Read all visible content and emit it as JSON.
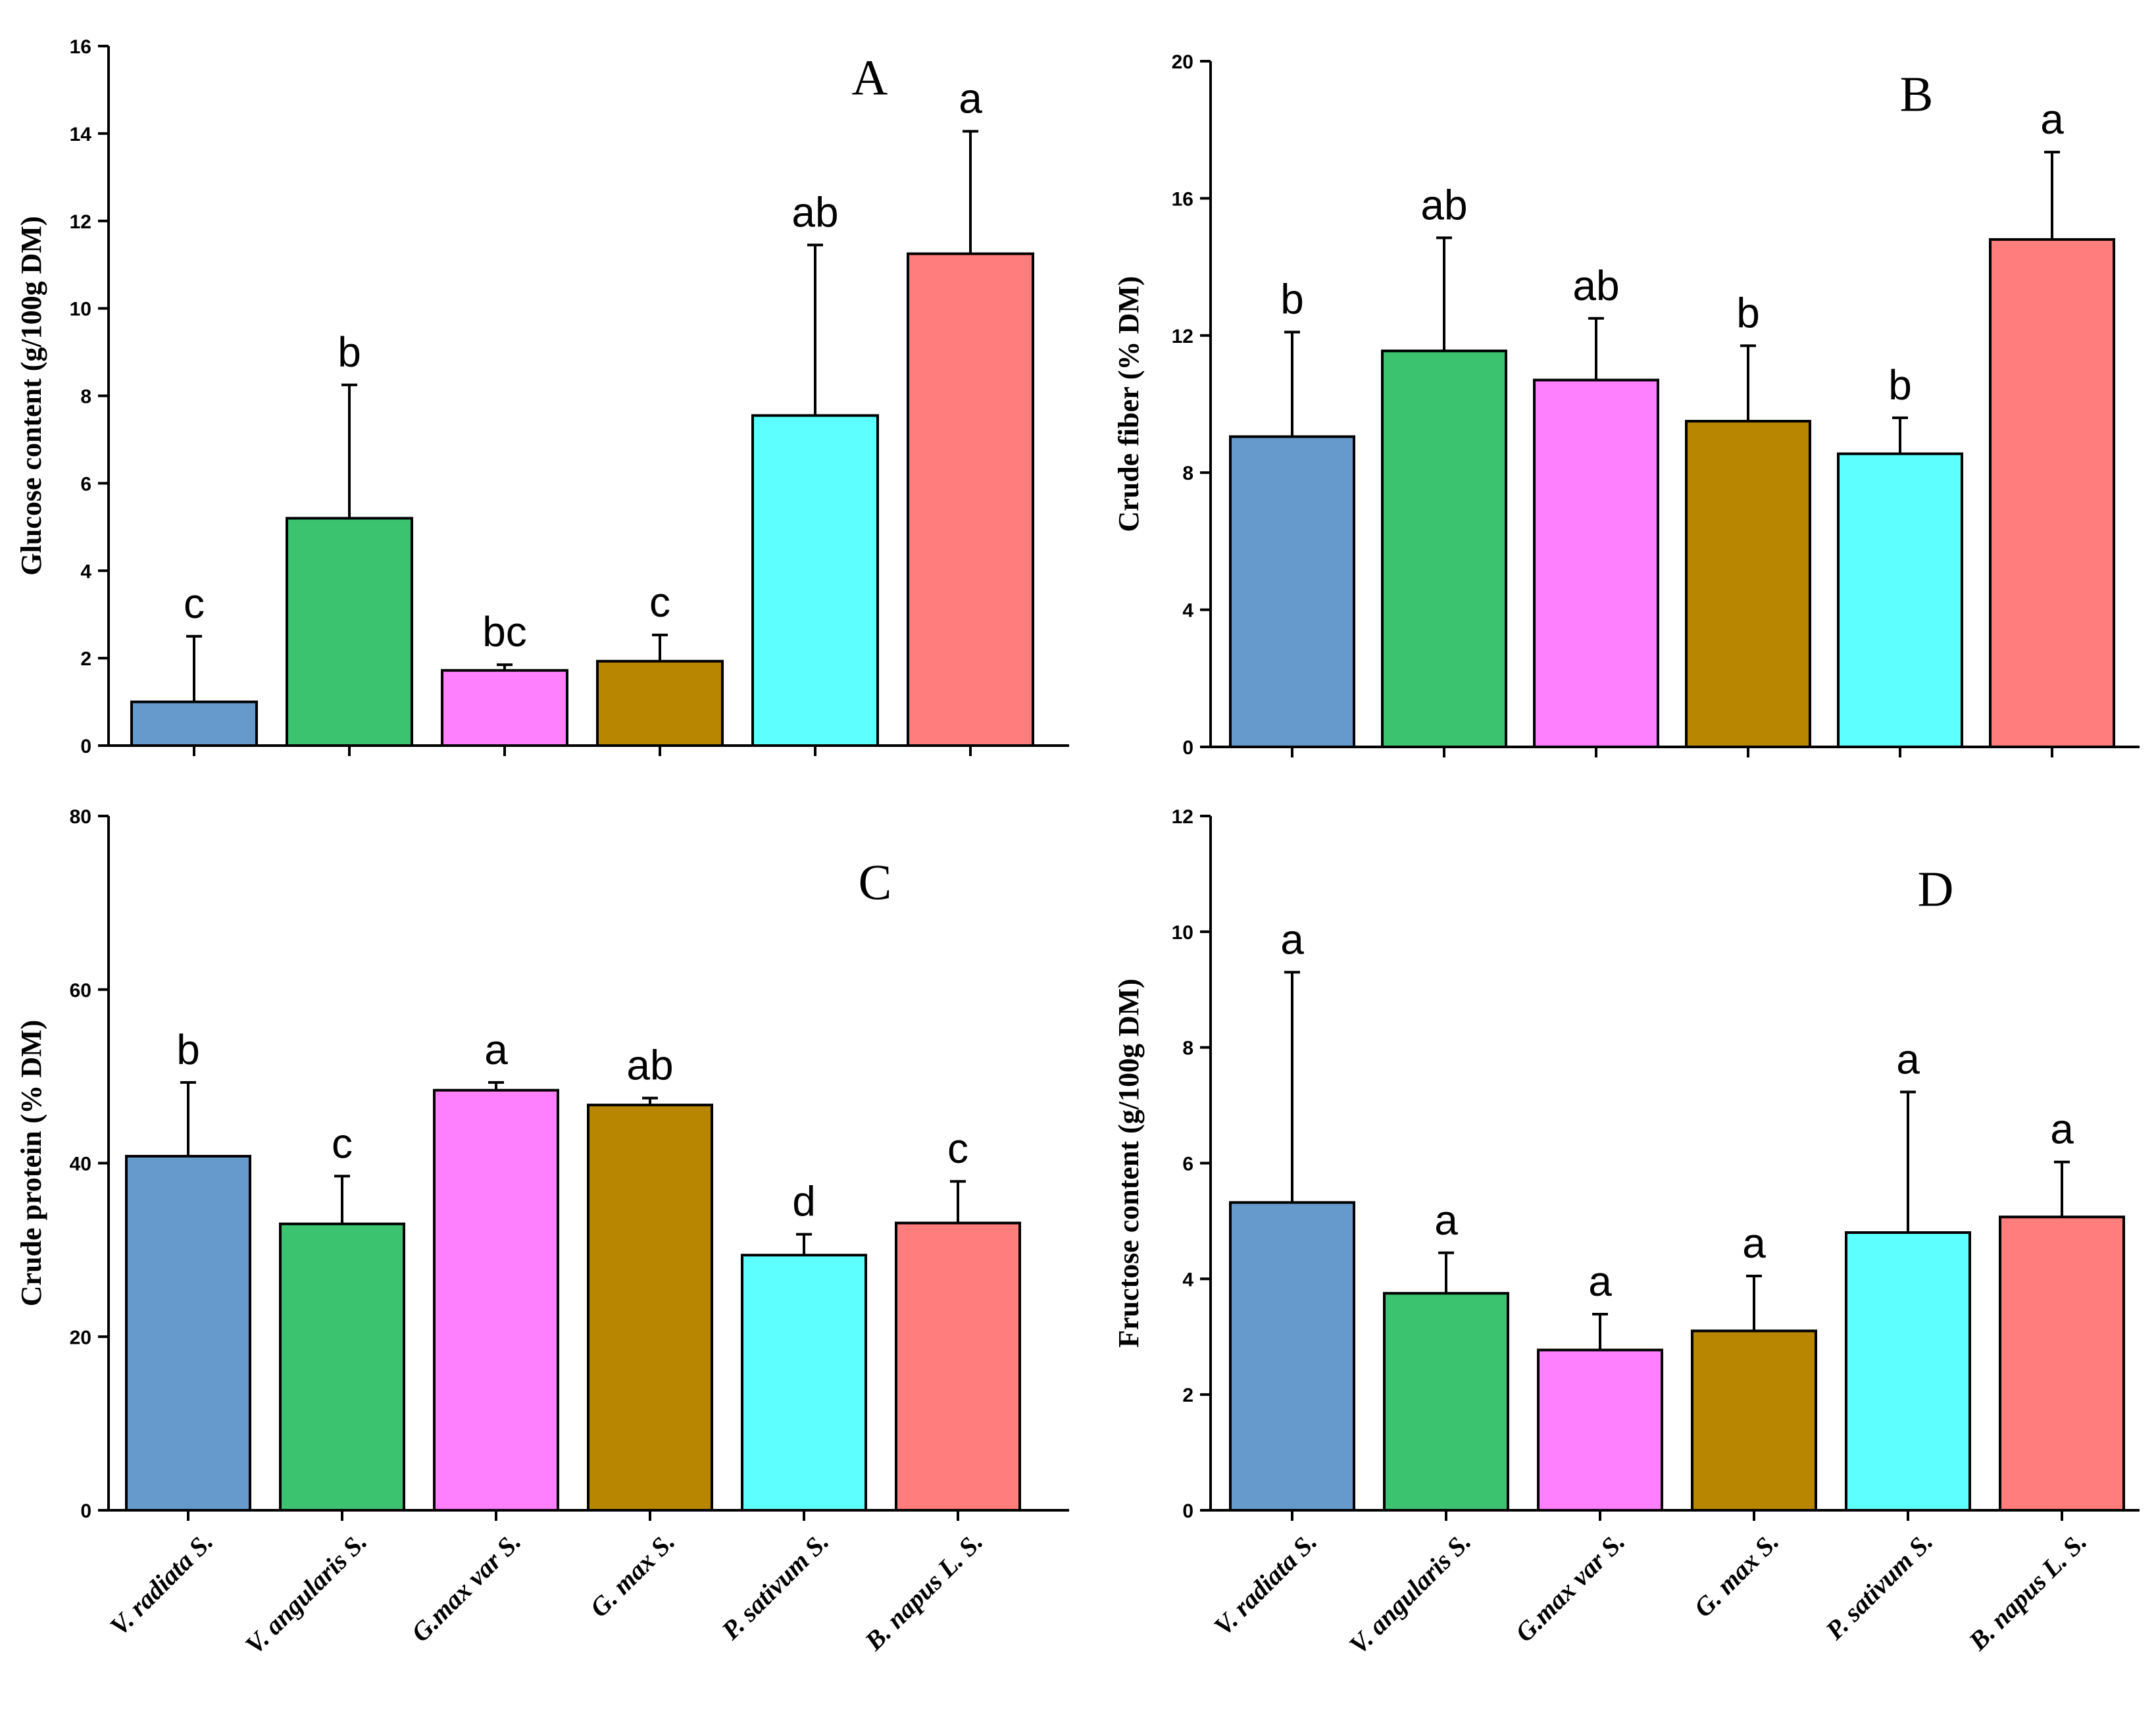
{
  "categories": [
    "V. radiata S.",
    "V. angularis S.",
    "G.max var S.",
    "G. max S.",
    "P. sativum S.",
    "B. napus L. S."
  ],
  "colors": [
    "#6699cc",
    "#3cc370",
    "#ff80ff",
    "#b88600",
    "#5effff",
    "#ff7d7d"
  ],
  "chart_data": [
    {
      "type": "bar",
      "panel": "A",
      "ylabel": "Glucose  content (g/100g DM)",
      "ylim": [
        0,
        16
      ],
      "yticks": [
        0,
        2,
        4,
        6,
        8,
        10,
        12,
        14,
        16
      ],
      "values": [
        1.0,
        5.2,
        1.72,
        1.93,
        7.55,
        11.25
      ],
      "errors": [
        1.5,
        3.05,
        0.13,
        0.6,
        3.9,
        2.8
      ],
      "letters": [
        "c",
        "b",
        "bc",
        "c",
        "ab",
        "a"
      ]
    },
    {
      "type": "bar",
      "panel": "B",
      "ylabel": "Crude fiber (% DM)",
      "ylim": [
        0,
        20
      ],
      "yticks": [
        0,
        4,
        8,
        12,
        16,
        20
      ],
      "values": [
        9.05,
        11.55,
        10.7,
        9.5,
        8.55,
        14.8
      ],
      "errors": [
        3.05,
        3.3,
        1.8,
        2.2,
        1.05,
        2.55
      ],
      "letters": [
        "b",
        "ab",
        "ab",
        "b",
        "b",
        "a"
      ]
    },
    {
      "type": "bar",
      "panel": "C",
      "ylabel": "Crude protein  (% DM)",
      "ylim": [
        0,
        80
      ],
      "yticks": [
        0,
        20,
        40,
        60,
        80
      ],
      "values": [
        40.8,
        33.0,
        48.4,
        46.7,
        29.4,
        33.1
      ],
      "errors": [
        8.5,
        5.5,
        0.9,
        0.8,
        2.4,
        4.8
      ],
      "letters": [
        "b",
        "c",
        "a",
        "ab",
        "d",
        "c"
      ]
    },
    {
      "type": "bar",
      "panel": "D",
      "ylabel": "Fructose  content (g/100g DM)",
      "ylim": [
        0,
        12
      ],
      "yticks": [
        0,
        2,
        4,
        6,
        8,
        10,
        12
      ],
      "values": [
        5.32,
        3.75,
        2.77,
        3.1,
        4.8,
        5.07
      ],
      "errors": [
        3.98,
        0.7,
        0.62,
        0.95,
        2.43,
        0.95
      ],
      "letters": [
        "a",
        "a",
        "a",
        "a",
        "a",
        "a"
      ]
    }
  ]
}
